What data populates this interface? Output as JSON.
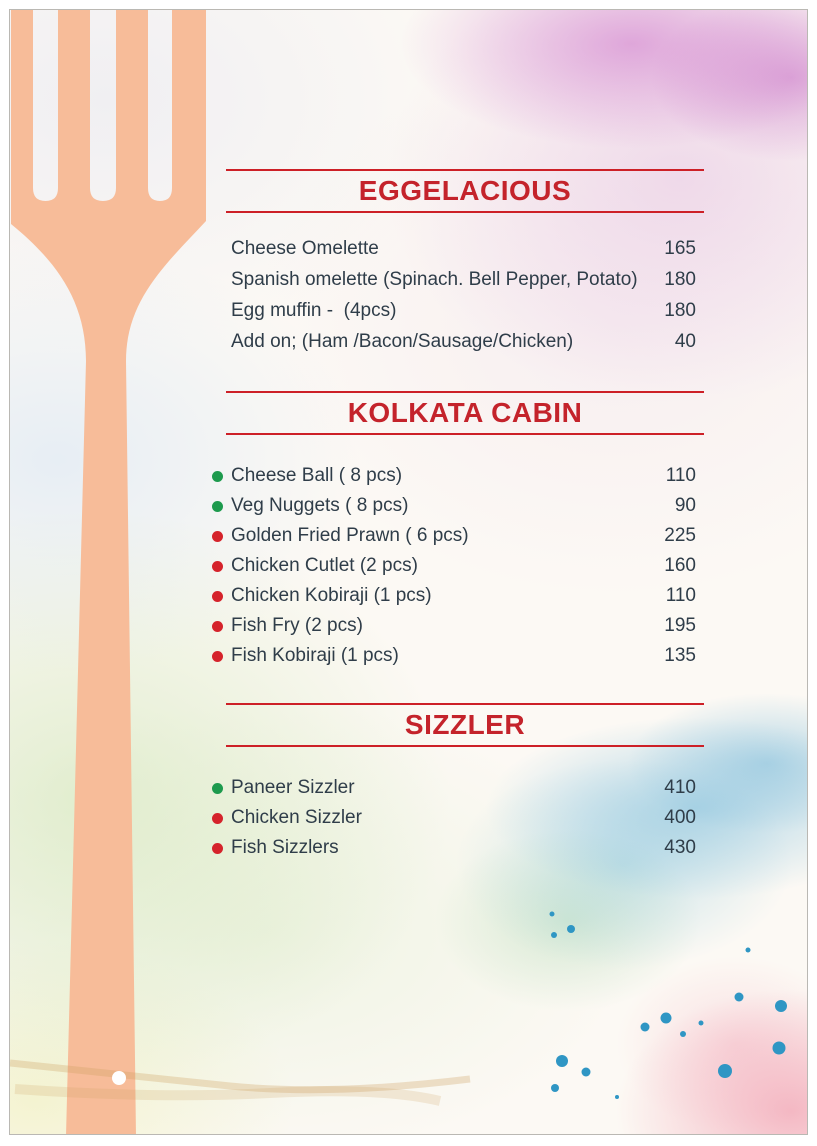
{
  "colors": {
    "accent_red": "#C4232B",
    "rule_red": "#CD2027",
    "text_ink": "#2F3D49",
    "veg_green": "#1D9A4D",
    "nonveg_red": "#D5232B",
    "fork_peach": "#F7BC99",
    "splatter_teal": "#2F96C4"
  },
  "menu": {
    "sections": [
      {
        "title": "EGGELACIOUS",
        "items": [
          {
            "name": "Cheese Omelette",
            "price": "165",
            "marker": "none"
          },
          {
            "name": "Spanish omelette (Spinach. Bell Pepper, Potato)",
            "price": "180",
            "marker": "none"
          },
          {
            "name": "Egg muffin -  (4pcs)",
            "price": "180",
            "marker": "none"
          },
          {
            "name": "Add on; (Ham /Bacon/Sausage/Chicken)",
            "price": "40",
            "marker": "none"
          }
        ]
      },
      {
        "title": "KOLKATA CABIN",
        "items": [
          {
            "name": "Cheese Ball ( 8 pcs)",
            "price": "110",
            "marker": "veg"
          },
          {
            "name": "Veg Nuggets ( 8 pcs)",
            "price": "90",
            "marker": "veg"
          },
          {
            "name": "Golden Fried Prawn ( 6 pcs)",
            "price": "225",
            "marker": "nonveg"
          },
          {
            "name": "Chicken Cutlet (2 pcs)",
            "price": "160",
            "marker": "nonveg"
          },
          {
            "name": "Chicken Kobiraji (1 pcs)",
            "price": "110",
            "marker": "nonveg"
          },
          {
            "name": "Fish Fry (2 pcs)",
            "price": "195",
            "marker": "nonveg"
          },
          {
            "name": "Fish Kobiraji (1 pcs)",
            "price": "135",
            "marker": "nonveg"
          }
        ]
      },
      {
        "title": "SIZZLER",
        "items": [
          {
            "name": "Paneer Sizzler",
            "price": "410",
            "marker": "veg"
          },
          {
            "name": "Chicken Sizzler",
            "price": "400",
            "marker": "nonveg"
          },
          {
            "name": "Fish Sizzlers",
            "price": "430",
            "marker": "nonveg"
          }
        ]
      }
    ]
  }
}
